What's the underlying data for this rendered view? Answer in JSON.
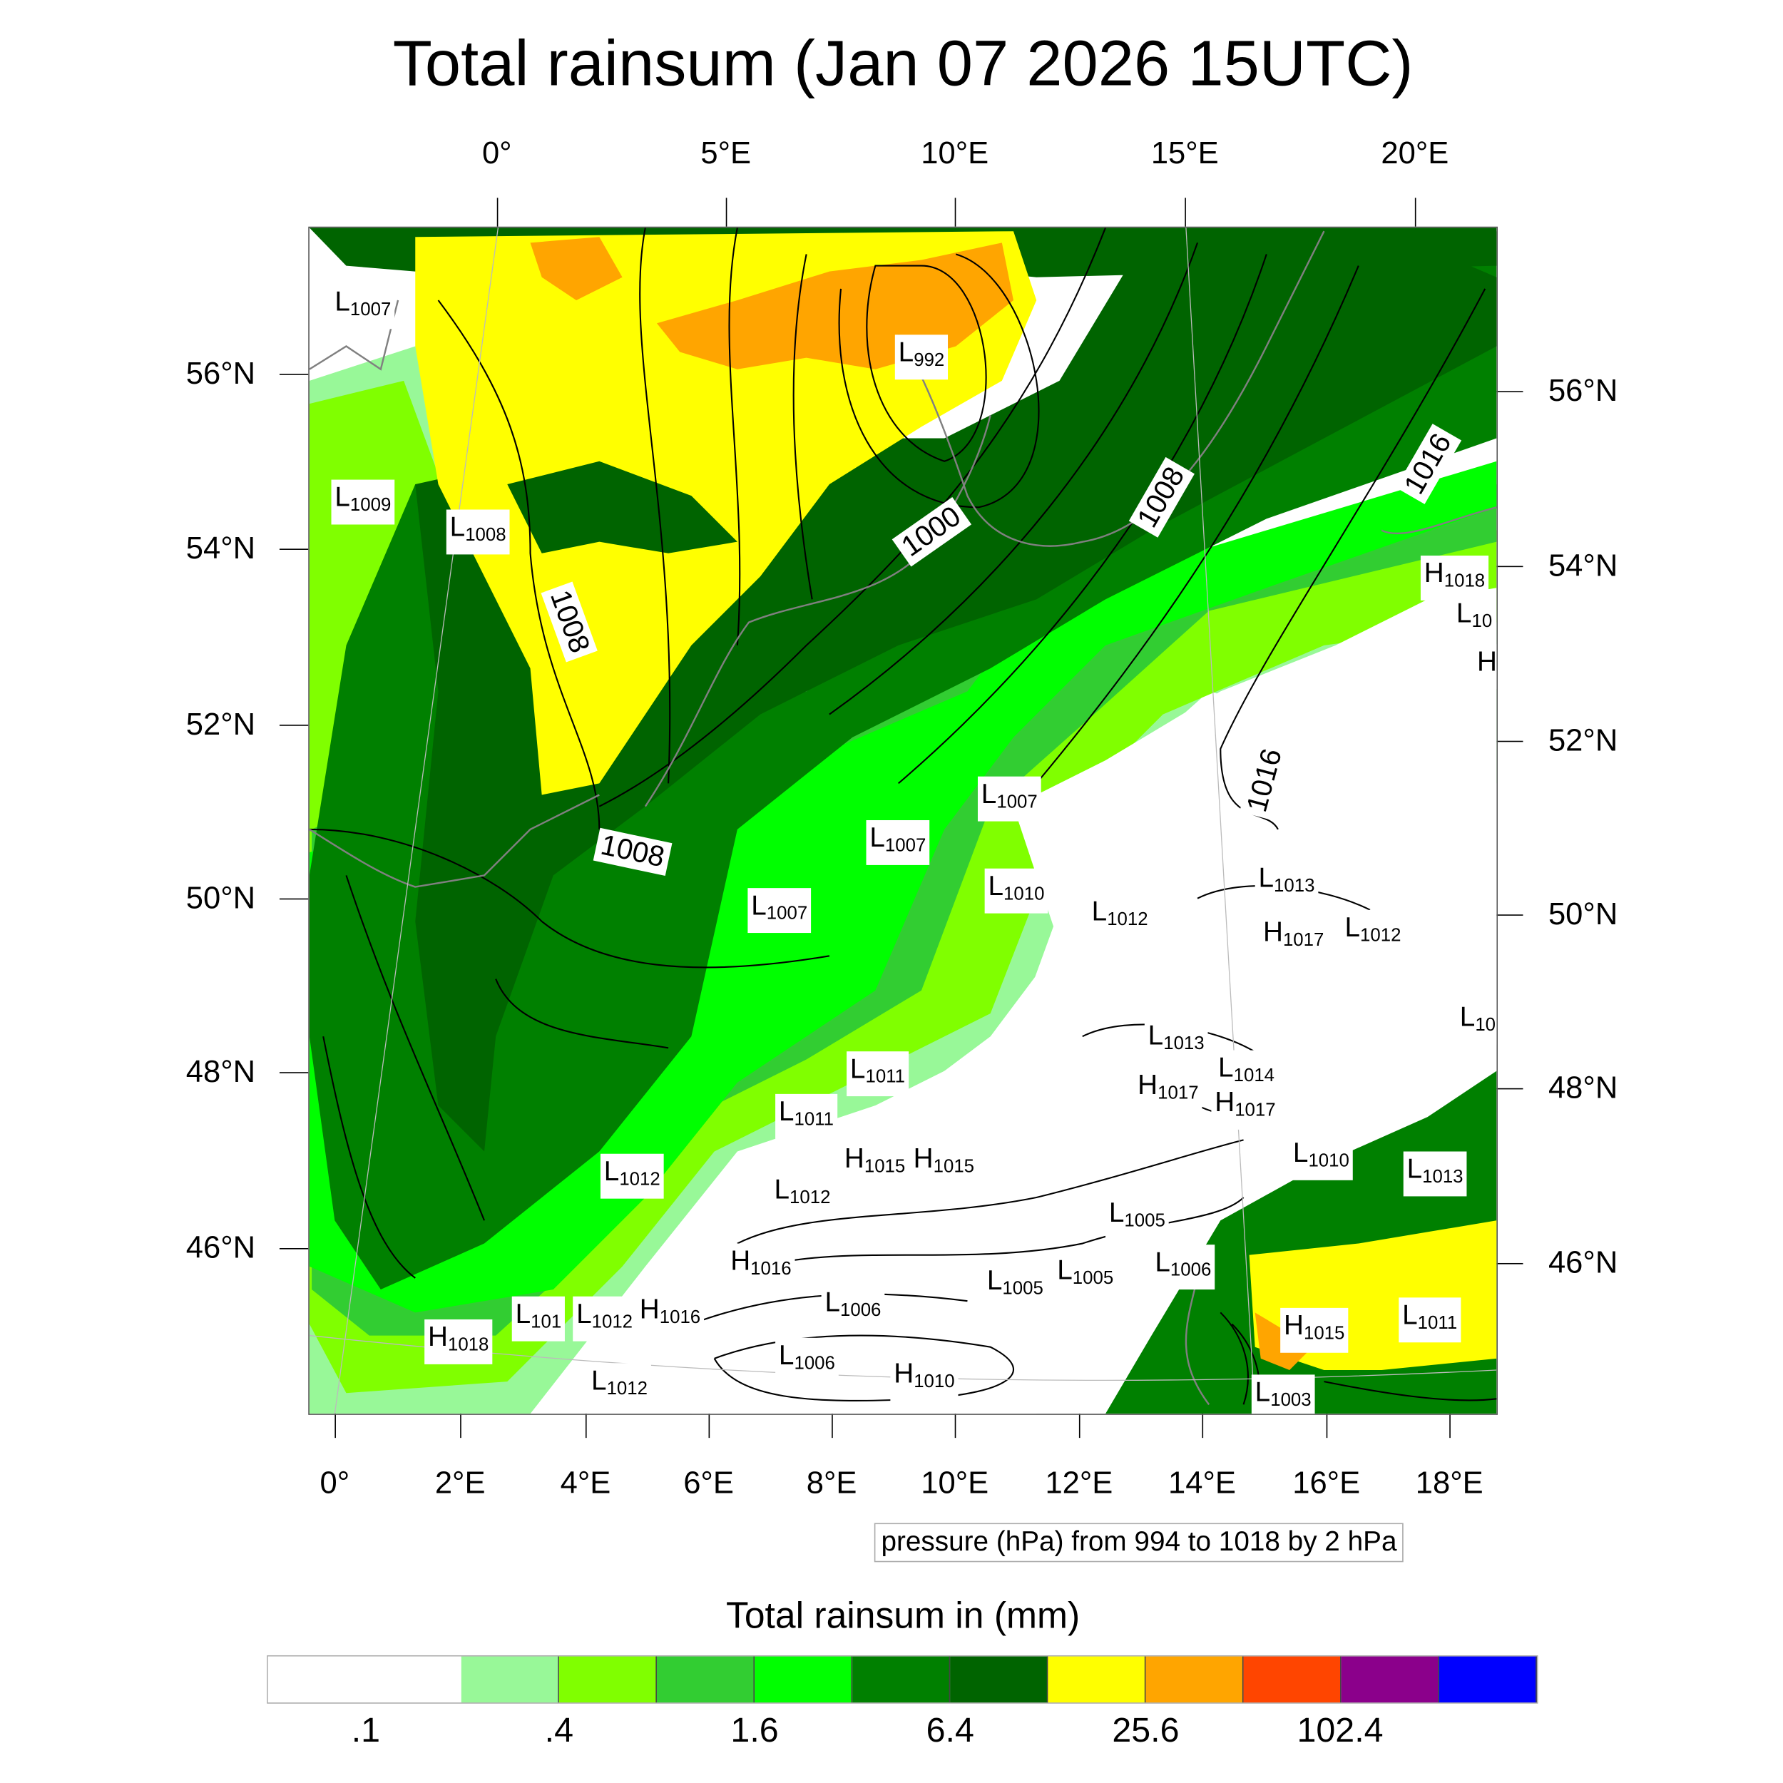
{
  "title": "Total rainsum (Jan 07 2026 15UTC)",
  "top_lon_ticks": [
    "0°",
    "5°E",
    "10°E",
    "15°E",
    "20°E"
  ],
  "bottom_lon_ticks": [
    "0°",
    "2°E",
    "4°E",
    "6°E",
    "8°E",
    "10°E",
    "12°E",
    "14°E",
    "16°E",
    "18°E"
  ],
  "left_lat_ticks": [
    "56°N",
    "54°N",
    "52°N",
    "50°N",
    "48°N",
    "46°N"
  ],
  "right_lat_ticks": [
    "56°N",
    "54°N",
    "52°N",
    "50°N",
    "48°N",
    "46°N"
  ],
  "pressure_centers": [
    {
      "type": "L",
      "value": "1007"
    },
    {
      "type": "L",
      "value": "1009"
    },
    {
      "type": "L",
      "value": "1008"
    },
    {
      "type": "L",
      "value": "992"
    },
    {
      "type": "L",
      "value": "1007"
    },
    {
      "type": "L",
      "value": "1007"
    },
    {
      "type": "L",
      "value": "1010"
    },
    {
      "type": "L",
      "value": "1007"
    },
    {
      "type": "L",
      "value": "1012"
    },
    {
      "type": "L",
      "value": "1013"
    },
    {
      "type": "H",
      "value": "1017"
    },
    {
      "type": "L",
      "value": "1012"
    },
    {
      "type": "H",
      "value": "1018"
    },
    {
      "type": "L",
      "value": "10"
    },
    {
      "type": "H",
      "value": ""
    },
    {
      "type": "L",
      "value": "10"
    },
    {
      "type": "L",
      "value": "1013"
    },
    {
      "type": "L",
      "value": "1014"
    },
    {
      "type": "H",
      "value": "1017"
    },
    {
      "type": "H",
      "value": "1017"
    },
    {
      "type": "L",
      "value": "1011"
    },
    {
      "type": "L",
      "value": "1011"
    },
    {
      "type": "H",
      "value": "1015"
    },
    {
      "type": "H",
      "value": "1015"
    },
    {
      "type": "L",
      "value": "1012"
    },
    {
      "type": "L",
      "value": "1012"
    },
    {
      "type": "L",
      "value": "1010"
    },
    {
      "type": "L",
      "value": "1013"
    },
    {
      "type": "L",
      "value": "1005"
    },
    {
      "type": "L",
      "value": "1006"
    },
    {
      "type": "L",
      "value": "1005"
    },
    {
      "type": "L",
      "value": "1005"
    },
    {
      "type": "H",
      "value": "1016"
    },
    {
      "type": "L",
      "value": "1006"
    },
    {
      "type": "H",
      "value": "1016"
    },
    {
      "type": "L",
      "value": "101"
    },
    {
      "type": "L",
      "value": "1012"
    },
    {
      "type": "H",
      "value": "1018"
    },
    {
      "type": "H",
      "value": "1015"
    },
    {
      "type": "L",
      "value": "1011"
    },
    {
      "type": "L",
      "value": "1006"
    },
    {
      "type": "H",
      "value": "1010"
    },
    {
      "type": "L",
      "value": "1012"
    },
    {
      "type": "L",
      "value": "1003"
    }
  ],
  "contour_labels": [
    "1008",
    "1008",
    "1008",
    "1000",
    "1016",
    "1016"
  ],
  "contour_note": "pressure (hPa) from 994 to 1018 by 2 hPa",
  "colorbar": {
    "title": "Total rainsum in (mm)",
    "colors": [
      "#ffffff",
      "#ffffff",
      "#98f898",
      "#80ff00",
      "#32cd32",
      "#00ff00",
      "#008000",
      "#006400",
      "#ffff00",
      "#ffa500",
      "#ff4500",
      "#8b008b",
      "#0000ff"
    ],
    "labels": [
      ".1",
      ".4",
      "1.6",
      "6.4",
      "25.6",
      "102.4"
    ]
  }
}
